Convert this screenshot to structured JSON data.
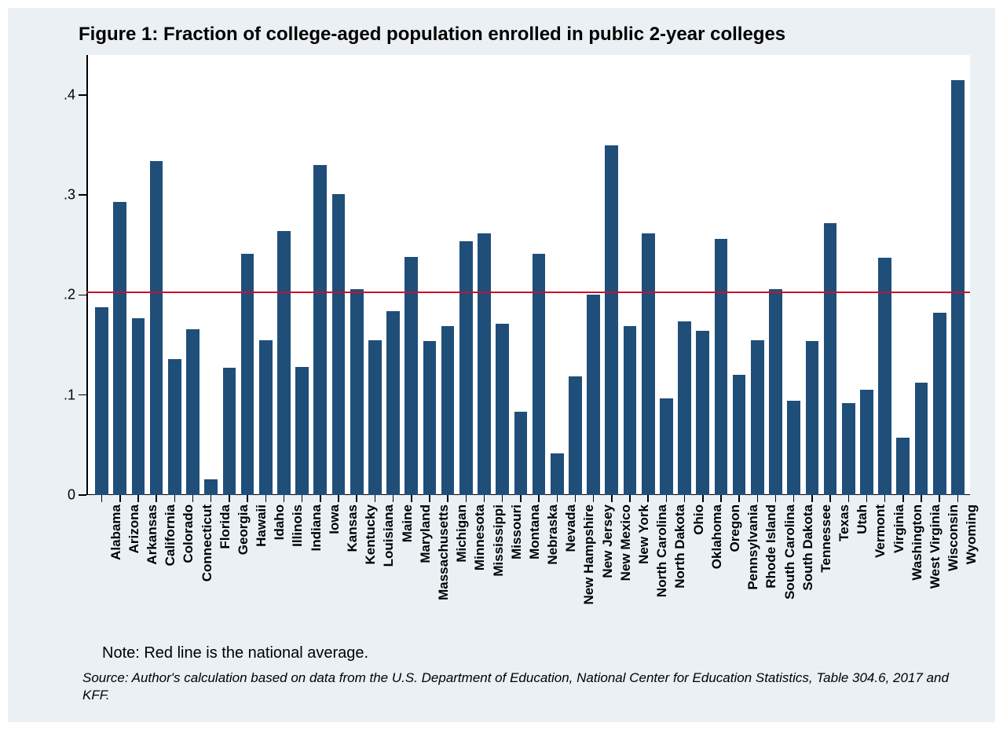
{
  "title": "Figure 1: Fraction of college-aged population enrolled in public 2-year colleges",
  "note": "Note: Red line is the national average.",
  "source": "Source: Author's calculation based on data from the U.S. Department of Education, National Center for Education Statistics, Table 304.6, 2017 and KFF.",
  "chart": {
    "type": "bar",
    "background_color": "#ffffff",
    "surround_color": "#eaf0f4",
    "bar_color": "#1f4e79",
    "axis_color": "#000000",
    "refline_color": "#c8102e",
    "refline_value": 0.203,
    "ylim": [
      0,
      0.44
    ],
    "yticks": [
      {
        "value": 0,
        "label": "0"
      },
      {
        "value": 0.1,
        "label": ".1"
      },
      {
        "value": 0.2,
        "label": ".2"
      },
      {
        "value": 0.3,
        "label": ".3"
      },
      {
        "value": 0.4,
        "label": ".4"
      }
    ],
    "title_fontsize": 24,
    "tick_label_fontsize": 18,
    "xlabel_fontsize": 17,
    "xlabel_fontweight": "bold",
    "bar_gap_ratio": 0.28,
    "categories": [
      "Alabama",
      "Arizona",
      "Arkansas",
      "California",
      "Colorado",
      "Connecticut",
      "Florida",
      "Georgia",
      "Hawaii",
      "Idaho",
      "Illinois",
      "Indiana",
      "Iowa",
      "Kansas",
      "Kentucky",
      "Louisiana",
      "Maine",
      "Maryland",
      "Massachusetts",
      "Michigan",
      "Minnesota",
      "Mississippi",
      "Missouri",
      "Montana",
      "Nebraska",
      "Nevada",
      "New Hampshire",
      "New Jersey",
      "New Mexico",
      "New York",
      "North Carolina",
      "North Dakota",
      "Ohio",
      "Oklahoma",
      "Oregon",
      "Pennsylvania",
      "Rhode Island",
      "South Carolina",
      "South Dakota",
      "Tennessee",
      "Texas",
      "Utah",
      "Vermont",
      "Virginia",
      "Washington",
      "West Virginia",
      "Wisconsin",
      "Wyoming"
    ],
    "values": [
      0.188,
      0.293,
      0.177,
      0.334,
      0.136,
      0.166,
      0.016,
      0.127,
      0.241,
      0.155,
      0.264,
      0.128,
      0.33,
      0.301,
      0.206,
      0.155,
      0.184,
      0.238,
      0.154,
      0.169,
      0.254,
      0.262,
      0.171,
      0.083,
      0.241,
      0.042,
      0.119,
      0.2,
      0.35,
      0.169,
      0.262,
      0.097,
      0.174,
      0.164,
      0.256,
      0.12,
      0.155,
      0.206,
      0.094,
      0.154,
      0.272,
      0.092,
      0.105,
      0.237,
      0.057,
      0.112,
      0.182,
      0.415
    ]
  }
}
